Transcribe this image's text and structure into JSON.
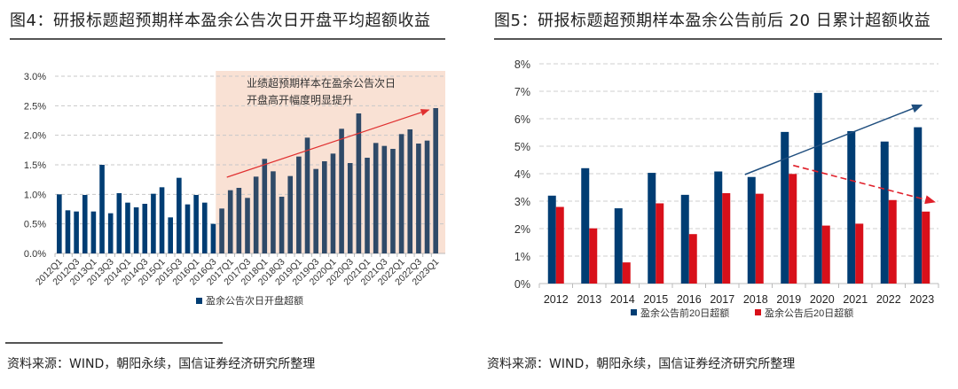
{
  "left": {
    "title": "图4：研报标题超预期样本盈余公告次日开盘平均超额收益",
    "source": "资料来源：WIND，朝阳永续，国信证券经济研究所整理"
  },
  "right": {
    "title": "图5：研报标题超预期样本盈余公告前后 20 日累计超额收益",
    "source": "资料来源：WIND，朝阳永续，国信证券经济研究所整理"
  },
  "chart_data": [
    {
      "type": "bar",
      "title": "研报标题超预期样本盈余公告次日开盘平均超额收益",
      "xlabel": "",
      "ylabel": "",
      "ylim": [
        0,
        3.0
      ],
      "yticks": [
        "0.0%",
        "0.5%",
        "1.0%",
        "1.5%",
        "2.0%",
        "2.5%",
        "3.0%"
      ],
      "ytick_values": [
        0,
        0.5,
        1.0,
        1.5,
        2.0,
        2.5,
        3.0
      ],
      "grid": true,
      "legend_position": "bottom",
      "categories": [
        "2012Q1",
        "2012Q2",
        "2012Q3",
        "2012Q4",
        "2013Q1",
        "2013Q2",
        "2013Q3",
        "2013Q4",
        "2014Q1",
        "2014Q2",
        "2014Q3",
        "2014Q4",
        "2015Q1",
        "2015Q2",
        "2015Q3",
        "2015Q4",
        "2016Q1",
        "2016Q2",
        "2016Q3",
        "2016Q4",
        "2017Q1",
        "2017Q2",
        "2017Q3",
        "2017Q4",
        "2018Q1",
        "2018Q2",
        "2018Q3",
        "2018Q4",
        "2019Q1",
        "2019Q2",
        "2019Q3",
        "2019Q4",
        "2020Q1",
        "2020Q2",
        "2020Q3",
        "2020Q4",
        "2021Q1",
        "2021Q2",
        "2021Q3",
        "2021Q4",
        "2022Q1",
        "2022Q2",
        "2022Q3",
        "2022Q4",
        "2023Q1"
      ],
      "tick_labels": [
        "2012Q1",
        "2012Q3",
        "2013Q1",
        "2013Q3",
        "2014Q1",
        "2014Q3",
        "2015Q1",
        "2015Q3",
        "2016Q1",
        "2016Q3",
        "2017Q1",
        "2017Q3",
        "2018Q1",
        "2018Q3",
        "2019Q1",
        "2019Q3",
        "2020Q1",
        "2020Q3",
        "2021Q1",
        "2021Q3",
        "2022Q1",
        "2022Q3",
        "2023Q1"
      ],
      "series": [
        {
          "name": "盈余公告次日开盘超额",
          "color": "#003D73",
          "values": [
            1.0,
            0.73,
            0.71,
            0.99,
            0.71,
            1.5,
            0.68,
            1.02,
            0.86,
            0.78,
            0.84,
            1.01,
            1.12,
            0.61,
            1.28,
            0.83,
            0.99,
            0.86,
            0.5,
            0.76,
            1.07,
            1.11,
            0.94,
            1.3,
            1.6,
            1.39,
            0.96,
            1.31,
            1.64,
            1.96,
            1.43,
            1.56,
            1.69,
            2.11,
            1.53,
            2.37,
            1.62,
            1.87,
            1.82,
            1.77,
            2.02,
            2.1,
            1.86,
            1.91,
            2.46
          ]
        }
      ],
      "highlight": {
        "from_category": "2016Q4",
        "to_category": "2023Q1",
        "color": "#F9E1D4",
        "annotation_line1": "业绩超预期样本在盈余公告次日",
        "annotation_line2": "开盘高开幅度明显提升",
        "trend_arrow": {
          "from": [
            "2017Q1",
            1.35
          ],
          "to": [
            "2022Q4",
            2.46
          ],
          "color": "#E03030"
        }
      }
    },
    {
      "type": "bar",
      "title": "研报标题超预期样本盈余公告前后 20 日累计超额收益",
      "xlabel": "",
      "ylabel": "",
      "ylim": [
        0,
        8
      ],
      "yticks": [
        "0%",
        "1%",
        "2%",
        "3%",
        "4%",
        "5%",
        "6%",
        "7%",
        "8%"
      ],
      "ytick_values": [
        0,
        1,
        2,
        3,
        4,
        5,
        6,
        7,
        8
      ],
      "grid": true,
      "legend_position": "bottom",
      "categories": [
        "2012",
        "2013",
        "2014",
        "2015",
        "2016",
        "2017",
        "2018",
        "2019",
        "2020",
        "2021",
        "2022",
        "2023"
      ],
      "series": [
        {
          "name": "盈余公告前20日超额",
          "color": "#003D73",
          "values": [
            3.2,
            4.2,
            2.74,
            4.03,
            3.23,
            4.08,
            3.88,
            5.52,
            6.94,
            5.55,
            5.17,
            5.69
          ]
        },
        {
          "name": "盈余公告后20日超额",
          "color": "#D8101A",
          "values": [
            2.79,
            2.01,
            0.77,
            2.92,
            1.8,
            3.29,
            3.27,
            3.99,
            2.11,
            2.18,
            3.04,
            2.62
          ]
        }
      ],
      "trend_arrows": [
        {
          "name": "up-trend",
          "color": "#1F4E7E",
          "dashed": false,
          "from": [
            "2018",
            4.0
          ],
          "to": [
            "2023",
            6.5
          ]
        },
        {
          "name": "down-trend",
          "color": "#E0202A",
          "dashed": true,
          "from": [
            "2019",
            4.3
          ],
          "to": [
            "2023+",
            3.0
          ]
        }
      ]
    }
  ]
}
